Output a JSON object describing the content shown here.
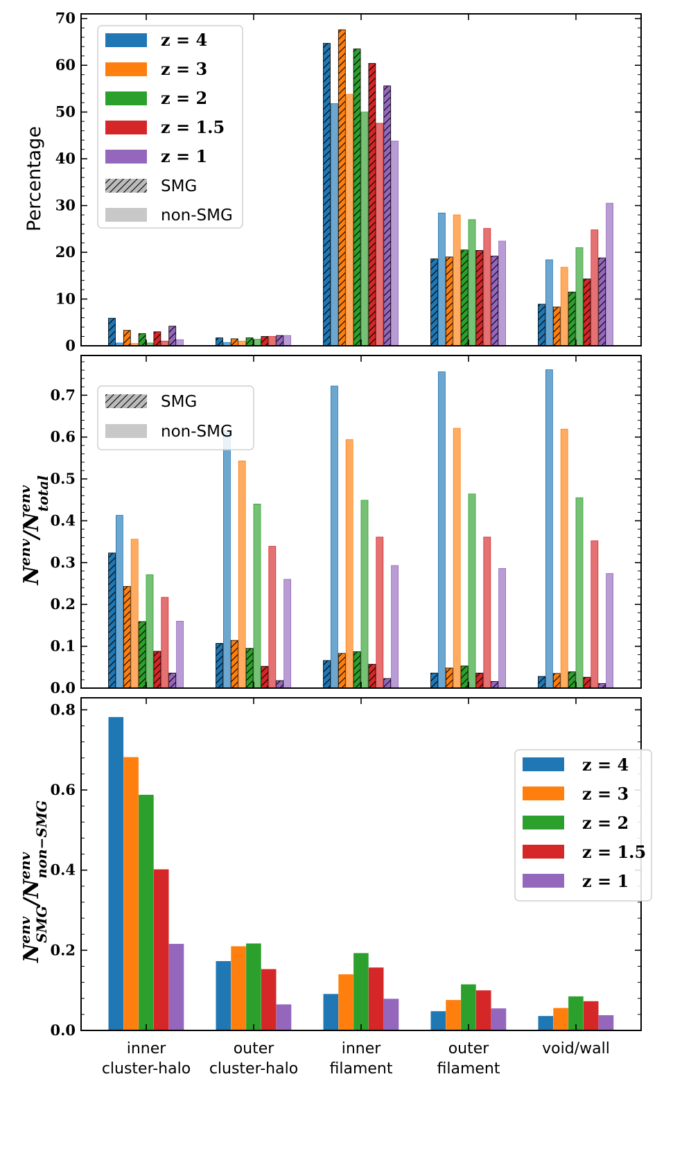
{
  "chart_data": [
    {
      "type": "bar",
      "panel": "top",
      "ylabel": "Percentage",
      "ylim": [
        0,
        71
      ],
      "yticks": [
        "0",
        "10",
        "20",
        "30",
        "40",
        "50",
        "60",
        "70"
      ],
      "categories": [
        "inner cluster-halo",
        "outer cluster-halo",
        "inner filament",
        "outer filament",
        "void/wall"
      ],
      "series": [
        {
          "name": "z = 4",
          "color": "#1f77b4",
          "smg": [
            5.9,
            1.7,
            64.7,
            18.6,
            8.9
          ],
          "non_smg": [
            0.6,
            0.7,
            51.8,
            28.4,
            18.4
          ]
        },
        {
          "name": "z = 3",
          "color": "#ff7f0e",
          "smg": [
            3.3,
            1.5,
            67.6,
            19.0,
            8.3
          ],
          "non_smg": [
            0.5,
            1.0,
            53.8,
            28.0,
            16.8
          ]
        },
        {
          "name": "z = 2",
          "color": "#2ca02c",
          "smg": [
            2.6,
            1.7,
            63.5,
            20.5,
            11.5
          ],
          "non_smg": [
            0.6,
            1.4,
            50.0,
            27.0,
            21.0
          ]
        },
        {
          "name": "z = 1.5",
          "color": "#d62728",
          "smg": [
            3.0,
            2.0,
            60.4,
            20.4,
            14.3
          ],
          "non_smg": [
            1.0,
            2.0,
            47.6,
            25.1,
            24.8
          ]
        },
        {
          "name": "z = 1",
          "color": "#9467bd",
          "smg": [
            4.2,
            2.2,
            55.6,
            19.2,
            18.8
          ],
          "non_smg": [
            1.3,
            2.2,
            43.8,
            22.4,
            30.5
          ]
        }
      ],
      "legend": {
        "entries": [
          "z = 4",
          "z = 3",
          "z = 2",
          "z = 1.5",
          "z = 1",
          "SMG",
          "non-SMG"
        ],
        "placement": "upper-left"
      }
    },
    {
      "type": "bar",
      "panel": "middle",
      "ylabel": "N^env / N^env_total",
      "ylim": [
        0,
        0.795
      ],
      "yticks": [
        "0.0",
        "0.1",
        "0.2",
        "0.3",
        "0.4",
        "0.5",
        "0.6",
        "0.7"
      ],
      "categories": [
        "inner cluster-halo",
        "outer cluster-halo",
        "inner filament",
        "outer filament",
        "void/wall"
      ],
      "series": [
        {
          "name": "z = 4",
          "color": "#1f77b4",
          "smg": [
            0.323,
            0.107,
            0.066,
            0.036,
            0.028
          ],
          "non_smg": [
            0.413,
            0.617,
            0.722,
            0.756,
            0.761
          ]
        },
        {
          "name": "z = 3",
          "color": "#ff7f0e",
          "smg": [
            0.243,
            0.114,
            0.083,
            0.048,
            0.035
          ],
          "non_smg": [
            0.356,
            0.543,
            0.594,
            0.621,
            0.619
          ]
        },
        {
          "name": "z = 2",
          "color": "#2ca02c",
          "smg": [
            0.159,
            0.095,
            0.087,
            0.053,
            0.039
          ],
          "non_smg": [
            0.271,
            0.44,
            0.449,
            0.464,
            0.455
          ]
        },
        {
          "name": "z = 1.5",
          "color": "#d62728",
          "smg": [
            0.088,
            0.052,
            0.057,
            0.036,
            0.026
          ],
          "non_smg": [
            0.217,
            0.339,
            0.361,
            0.361,
            0.352
          ]
        },
        {
          "name": "z = 1",
          "color": "#9467bd",
          "smg": [
            0.036,
            0.018,
            0.023,
            0.016,
            0.011
          ],
          "non_smg": [
            0.16,
            0.26,
            0.293,
            0.286,
            0.274
          ]
        }
      ],
      "legend": {
        "entries": [
          "SMG",
          "non-SMG"
        ],
        "placement": "upper-left"
      }
    },
    {
      "type": "bar",
      "panel": "bottom",
      "ylabel": "N^env_SMG / N^env_non-SMG",
      "ylim": [
        0,
        0.83
      ],
      "yticks": [
        "0.0",
        "0.2",
        "0.4",
        "0.6",
        "0.8"
      ],
      "categories": [
        "inner cluster-halo",
        "outer cluster-halo",
        "inner filament",
        "outer filament",
        "void/wall"
      ],
      "series": [
        {
          "name": "z = 4",
          "color": "#1f77b4",
          "values": [
            0.782,
            0.173,
            0.091,
            0.048,
            0.036
          ]
        },
        {
          "name": "z = 3",
          "color": "#ff7f0e",
          "values": [
            0.682,
            0.21,
            0.14,
            0.076,
            0.056
          ]
        },
        {
          "name": "z = 2",
          "color": "#2ca02c",
          "values": [
            0.588,
            0.217,
            0.193,
            0.115,
            0.085
          ]
        },
        {
          "name": "z = 1.5",
          "color": "#d62728",
          "values": [
            0.402,
            0.153,
            0.157,
            0.1,
            0.073
          ]
        },
        {
          "name": "z = 1",
          "color": "#9467bd",
          "values": [
            0.216,
            0.065,
            0.079,
            0.055,
            0.038
          ]
        }
      ],
      "legend": {
        "entries": [
          "z = 4",
          "z = 3",
          "z = 2",
          "z = 1.5",
          "z = 1"
        ],
        "placement": "upper-right"
      }
    }
  ],
  "x_tick_labels": [
    [
      "inner",
      "cluster-halo"
    ],
    [
      "outer",
      "cluster-halo"
    ],
    [
      "inner",
      "filament"
    ],
    [
      "outer",
      "filament"
    ],
    [
      "void/wall"
    ]
  ],
  "text": {
    "z4": "z = 4",
    "z3": "z = 3",
    "z2": "z = 2",
    "z15": "z = 1.5",
    "z1": "z = 1",
    "smg": "SMG",
    "non_smg": "non-SMG",
    "ylabel_top": "Percentage"
  }
}
